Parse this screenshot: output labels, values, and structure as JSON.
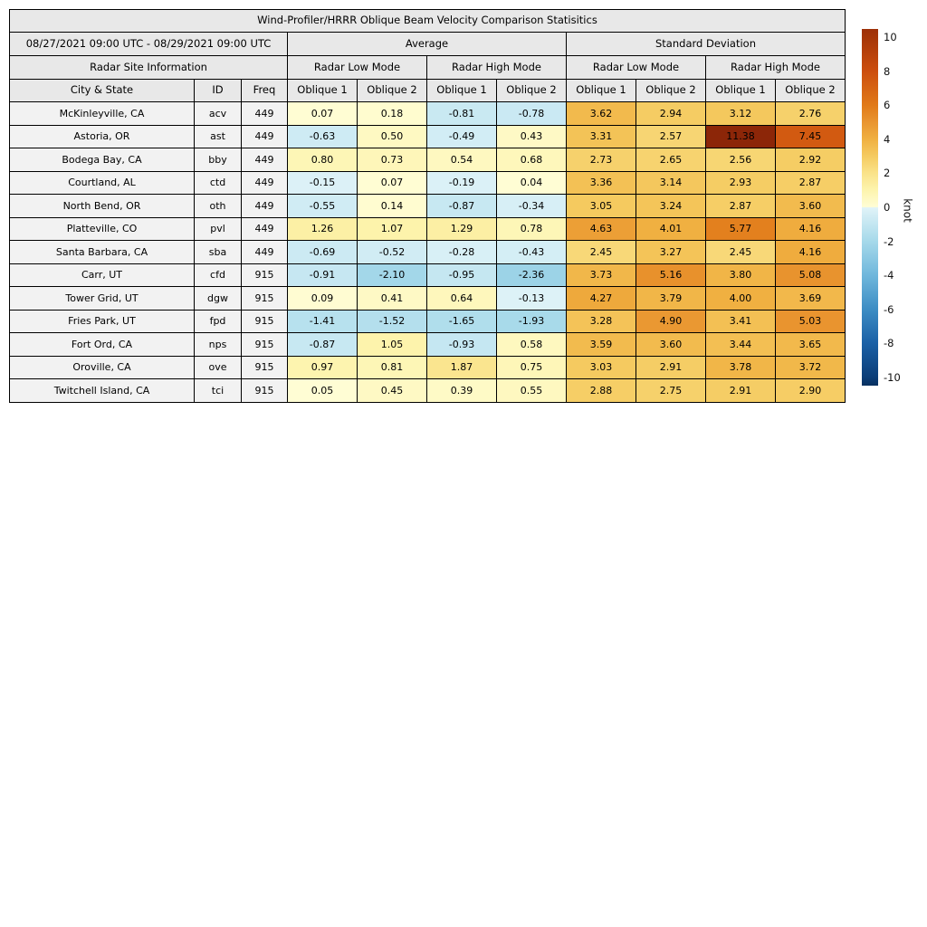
{
  "chart_data": {
    "type": "heatmap",
    "title": "Wind-Profiler/HRRR Oblique Beam Velocity Comparison Statisitics",
    "period": "08/27/2021 09:00 UTC - 08/29/2021 09:00 UTC",
    "headers": {
      "average": "Average",
      "std_dev": "Standard Deviation",
      "site_info": "Radar Site Information",
      "low_mode": "Radar Low Mode",
      "high_mode": "Radar High Mode",
      "city": "City & State",
      "id": "ID",
      "freq": "Freq",
      "oblique1": "Oblique 1",
      "oblique2": "Oblique 2"
    },
    "value_columns": [
      "average_low_oblique1",
      "average_low_oblique2",
      "average_high_oblique1",
      "average_high_oblique2",
      "std_low_oblique1",
      "std_low_oblique2",
      "std_high_oblique1",
      "std_high_oblique2"
    ],
    "rows": [
      {
        "city": "McKinleyville, CA",
        "id": "acv",
        "freq": "449",
        "values": [
          0.07,
          0.18,
          -0.81,
          -0.78,
          3.62,
          2.94,
          3.12,
          2.76
        ]
      },
      {
        "city": "Astoria, OR",
        "id": "ast",
        "freq": "449",
        "values": [
          -0.63,
          0.5,
          -0.49,
          0.43,
          3.31,
          2.57,
          11.38,
          7.45
        ]
      },
      {
        "city": "Bodega Bay, CA",
        "id": "bby",
        "freq": "449",
        "values": [
          0.8,
          0.73,
          0.54,
          0.68,
          2.73,
          2.65,
          2.56,
          2.92
        ]
      },
      {
        "city": "Courtland, AL",
        "id": "ctd",
        "freq": "449",
        "values": [
          -0.15,
          0.07,
          -0.19,
          0.04,
          3.36,
          3.14,
          2.93,
          2.87
        ]
      },
      {
        "city": "North Bend, OR",
        "id": "oth",
        "freq": "449",
        "values": [
          -0.55,
          0.14,
          -0.87,
          -0.34,
          3.05,
          3.24,
          2.87,
          3.6
        ]
      },
      {
        "city": "Platteville, CO",
        "id": "pvl",
        "freq": "449",
        "values": [
          1.26,
          1.07,
          1.29,
          0.78,
          4.63,
          4.01,
          5.77,
          4.16
        ]
      },
      {
        "city": "Santa Barbara, CA",
        "id": "sba",
        "freq": "449",
        "values": [
          -0.69,
          -0.52,
          -0.28,
          -0.43,
          2.45,
          3.27,
          2.45,
          4.16
        ]
      },
      {
        "city": "Carr, UT",
        "id": "cfd",
        "freq": "915",
        "values": [
          -0.91,
          -2.1,
          -0.95,
          -2.36,
          3.73,
          5.16,
          3.8,
          5.08
        ]
      },
      {
        "city": "Tower Grid, UT",
        "id": "dgw",
        "freq": "915",
        "values": [
          0.09,
          0.41,
          0.64,
          -0.13,
          4.27,
          3.79,
          4.0,
          3.69
        ]
      },
      {
        "city": "Fries Park, UT",
        "id": "fpd",
        "freq": "915",
        "values": [
          -1.41,
          -1.52,
          -1.65,
          -1.93,
          3.28,
          4.9,
          3.41,
          5.03
        ]
      },
      {
        "city": "Fort Ord, CA",
        "id": "nps",
        "freq": "915",
        "values": [
          -0.87,
          1.05,
          -0.93,
          0.58,
          3.59,
          3.6,
          3.44,
          3.65
        ]
      },
      {
        "city": "Oroville, CA",
        "id": "ove",
        "freq": "915",
        "values": [
          0.97,
          0.81,
          1.87,
          0.75,
          3.03,
          2.91,
          3.78,
          3.72
        ]
      },
      {
        "city": "Twitchell Island, CA",
        "id": "tci",
        "freq": "915",
        "values": [
          0.05,
          0.45,
          0.39,
          0.55,
          2.88,
          2.75,
          2.91,
          2.9
        ]
      }
    ],
    "colorbar": {
      "label": "knot",
      "ticks": [
        10,
        8,
        6,
        4,
        2,
        0,
        -2,
        -4,
        -6,
        -8,
        -10
      ],
      "vmin": -10.5,
      "vmax": 10.5
    },
    "colormap_stops": [
      {
        "v": -10.5,
        "c": "#08305F"
      },
      {
        "v": -10,
        "c": "#0B3D78"
      },
      {
        "v": -8,
        "c": "#1A60A6"
      },
      {
        "v": -6,
        "c": "#3D8DC4"
      },
      {
        "v": -4,
        "c": "#6FB7DC"
      },
      {
        "v": -2,
        "c": "#A6D9EA"
      },
      {
        "v": -0.02,
        "c": "#E0F3F8"
      },
      {
        "v": 0.02,
        "c": "#FFFDD5"
      },
      {
        "v": 1,
        "c": "#FDF4AE"
      },
      {
        "v": 2,
        "c": "#FAE38A"
      },
      {
        "v": 3,
        "c": "#F5CB61"
      },
      {
        "v": 4,
        "c": "#F0B041"
      },
      {
        "v": 5,
        "c": "#E99530"
      },
      {
        "v": 6,
        "c": "#E17A18"
      },
      {
        "v": 8,
        "c": "#CC4E0E"
      },
      {
        "v": 10,
        "c": "#A63608"
      },
      {
        "v": 11.5,
        "c": "#8A2508"
      }
    ],
    "colors": {
      "header_bg": "#E8E8E8",
      "site_bg": "#F2F2F2",
      "border": "#000000"
    }
  }
}
